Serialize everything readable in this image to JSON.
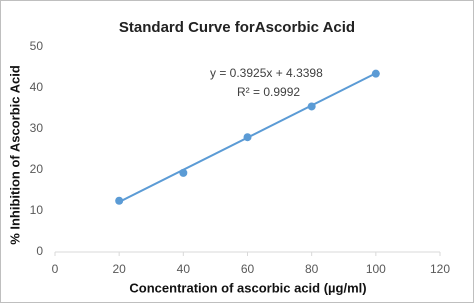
{
  "chart_data": {
    "type": "scatter",
    "title": "Standard Curve forAscorbic Acid",
    "xlabel": "Concentration of ascorbic acid (µg/ml)",
    "ylabel": "% Inhibition of Ascorbic Acid",
    "x": [
      20,
      40,
      60,
      80,
      100
    ],
    "series": [
      {
        "color": "#5b9bd5",
        "values": [
          12.5,
          19.3,
          28.0,
          35.5,
          43.5
        ]
      }
    ],
    "trendline": {
      "color": "#5b9bd5",
      "x": [
        20,
        100
      ],
      "values": [
        12.2,
        43.6
      ]
    },
    "annotations": [
      "y = 0.3925x + 4.3398",
      "R² = 0.9992"
    ],
    "xlim": [
      0,
      120
    ],
    "xticks": [
      0,
      20,
      40,
      60,
      80,
      100,
      120
    ],
    "ylim": [
      0,
      50
    ],
    "yticks": [
      0,
      10,
      20,
      30,
      40,
      50
    ],
    "grid": false
  }
}
